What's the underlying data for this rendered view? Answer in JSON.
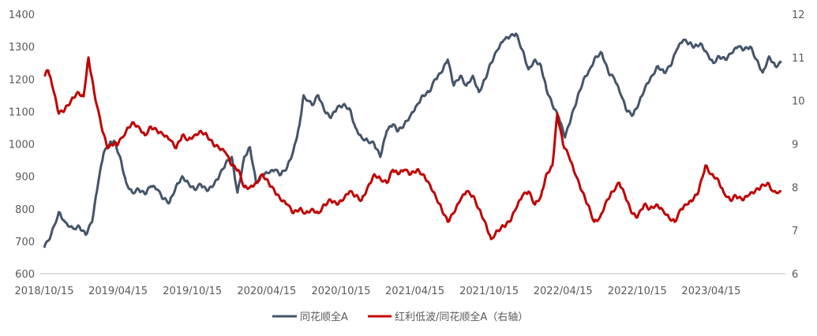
{
  "chart_data": {
    "type": "line",
    "x_labels": [
      "2018/10/15",
      "2019/04/15",
      "2019/10/15",
      "2020/04/15",
      "2020/10/15",
      "2021/04/15",
      "2021/10/15",
      "2022/04/15",
      "2022/10/15",
      "2023/04/15"
    ],
    "y_left": {
      "min": 600,
      "max": 1400,
      "ticks": [
        "600",
        "700",
        "800",
        "900",
        "1000",
        "1100",
        "1200",
        "1300",
        "1400"
      ]
    },
    "y_right": {
      "min": 6,
      "max": 12,
      "ticks": [
        "6",
        "7",
        "8",
        "9",
        "10",
        "11",
        "12"
      ]
    },
    "grid": false,
    "legend_position": "bottom",
    "series": [
      {
        "name": "同花顺全A",
        "axis": "left",
        "color": "#44546a",
        "points": [
          [
            "2018-10-15",
            680
          ],
          [
            "2018-11-01",
            720
          ],
          [
            "2018-11-20",
            790
          ],
          [
            "2018-12-05",
            760
          ],
          [
            "2018-12-25",
            740
          ],
          [
            "2019-01-10",
            745
          ],
          [
            "2019-01-25",
            720
          ],
          [
            "2019-02-10",
            760
          ],
          [
            "2019-02-25",
            880
          ],
          [
            "2019-03-10",
            970
          ],
          [
            "2019-03-25",
            1000
          ],
          [
            "2019-04-05",
            1010
          ],
          [
            "2019-04-20",
            960
          ],
          [
            "2019-05-05",
            880
          ],
          [
            "2019-05-20",
            850
          ],
          [
            "2019-06-05",
            860
          ],
          [
            "2019-06-20",
            845
          ],
          [
            "2019-07-05",
            870
          ],
          [
            "2019-07-20",
            860
          ],
          [
            "2019-08-05",
            830
          ],
          [
            "2019-08-20",
            820
          ],
          [
            "2019-09-05",
            870
          ],
          [
            "2019-09-20",
            900
          ],
          [
            "2019-10-05",
            880
          ],
          [
            "2019-10-20",
            860
          ],
          [
            "2019-11-05",
            875
          ],
          [
            "2019-11-20",
            855
          ],
          [
            "2019-12-05",
            870
          ],
          [
            "2019-12-20",
            900
          ],
          [
            "2020-01-05",
            940
          ],
          [
            "2020-01-20",
            960
          ],
          [
            "2020-02-03",
            850
          ],
          [
            "2020-02-20",
            960
          ],
          [
            "2020-03-05",
            990
          ],
          [
            "2020-03-20",
            880
          ],
          [
            "2020-04-05",
            905
          ],
          [
            "2020-04-20",
            910
          ],
          [
            "2020-05-05",
            920
          ],
          [
            "2020-05-20",
            905
          ],
          [
            "2020-06-05",
            930
          ],
          [
            "2020-06-20",
            980
          ],
          [
            "2020-07-05",
            1060
          ],
          [
            "2020-07-15",
            1150
          ],
          [
            "2020-08-05",
            1120
          ],
          [
            "2020-08-20",
            1150
          ],
          [
            "2020-09-05",
            1100
          ],
          [
            "2020-09-20",
            1080
          ],
          [
            "2020-10-05",
            1110
          ],
          [
            "2020-10-20",
            1120
          ],
          [
            "2020-11-05",
            1110
          ],
          [
            "2020-11-20",
            1050
          ],
          [
            "2020-12-05",
            1020
          ],
          [
            "2020-12-20",
            1010
          ],
          [
            "2021-01-05",
            1000
          ],
          [
            "2021-01-20",
            960
          ],
          [
            "2021-02-05",
            1040
          ],
          [
            "2021-02-20",
            1060
          ],
          [
            "2021-03-05",
            1040
          ],
          [
            "2021-03-20",
            1060
          ],
          [
            "2021-04-05",
            1090
          ],
          [
            "2021-04-20",
            1120
          ],
          [
            "2021-05-05",
            1150
          ],
          [
            "2021-05-20",
            1160
          ],
          [
            "2021-06-05",
            1200
          ],
          [
            "2021-06-20",
            1220
          ],
          [
            "2021-07-05",
            1260
          ],
          [
            "2021-07-20",
            1180
          ],
          [
            "2021-08-05",
            1210
          ],
          [
            "2021-08-20",
            1180
          ],
          [
            "2021-09-05",
            1210
          ],
          [
            "2021-09-20",
            1160
          ],
          [
            "2021-10-05",
            1200
          ],
          [
            "2021-10-20",
            1250
          ],
          [
            "2021-11-05",
            1290
          ],
          [
            "2021-11-20",
            1320
          ],
          [
            "2021-12-05",
            1330
          ],
          [
            "2021-12-20",
            1340
          ],
          [
            "2022-01-05",
            1290
          ],
          [
            "2022-01-20",
            1230
          ],
          [
            "2022-02-05",
            1260
          ],
          [
            "2022-02-20",
            1240
          ],
          [
            "2022-03-05",
            1170
          ],
          [
            "2022-03-20",
            1120
          ],
          [
            "2022-04-05",
            1080
          ],
          [
            "2022-04-20",
            1020
          ],
          [
            "2022-05-05",
            1080
          ],
          [
            "2022-05-20",
            1140
          ],
          [
            "2022-06-05",
            1200
          ],
          [
            "2022-06-20",
            1230
          ],
          [
            "2022-07-05",
            1270
          ],
          [
            "2022-07-20",
            1280
          ],
          [
            "2022-08-05",
            1220
          ],
          [
            "2022-08-20",
            1200
          ],
          [
            "2022-09-05",
            1150
          ],
          [
            "2022-09-20",
            1100
          ],
          [
            "2022-10-05",
            1090
          ],
          [
            "2022-10-20",
            1130
          ],
          [
            "2022-11-05",
            1180
          ],
          [
            "2022-11-20",
            1210
          ],
          [
            "2022-12-05",
            1240
          ],
          [
            "2022-12-20",
            1220
          ],
          [
            "2023-01-05",
            1240
          ],
          [
            "2023-01-20",
            1290
          ],
          [
            "2023-02-05",
            1320
          ],
          [
            "2023-02-20",
            1310
          ],
          [
            "2023-03-05",
            1300
          ],
          [
            "2023-03-20",
            1310
          ],
          [
            "2023-04-05",
            1280
          ],
          [
            "2023-04-20",
            1250
          ],
          [
            "2023-05-05",
            1270
          ],
          [
            "2023-05-20",
            1260
          ],
          [
            "2023-06-05",
            1280
          ],
          [
            "2023-06-20",
            1300
          ],
          [
            "2023-07-05",
            1290
          ],
          [
            "2023-07-20",
            1300
          ],
          [
            "2023-08-05",
            1260
          ],
          [
            "2023-08-20",
            1220
          ],
          [
            "2023-09-05",
            1270
          ],
          [
            "2023-09-20",
            1240
          ],
          [
            "2023-10-05",
            1250
          ]
        ]
      },
      {
        "name": "红利低波/同花顺全A（右轴）",
        "axis": "right",
        "color": "#c00000",
        "points": [
          [
            "2018-10-15",
            10.6
          ],
          [
            "2018-10-25",
            10.7
          ],
          [
            "2018-11-05",
            10.3
          ],
          [
            "2018-11-20",
            9.7
          ],
          [
            "2018-12-05",
            9.8
          ],
          [
            "2018-12-20",
            10.0
          ],
          [
            "2019-01-05",
            10.2
          ],
          [
            "2019-01-20",
            10.1
          ],
          [
            "2019-02-01",
            11.0
          ],
          [
            "2019-02-15",
            10.2
          ],
          [
            "2019-03-05",
            9.4
          ],
          [
            "2019-03-20",
            8.9
          ],
          [
            "2019-04-05",
            9.0
          ],
          [
            "2019-04-15",
            9.0
          ],
          [
            "2019-05-05",
            9.3
          ],
          [
            "2019-05-20",
            9.5
          ],
          [
            "2019-06-05",
            9.4
          ],
          [
            "2019-06-20",
            9.2
          ],
          [
            "2019-07-05",
            9.4
          ],
          [
            "2019-07-20",
            9.3
          ],
          [
            "2019-08-05",
            9.2
          ],
          [
            "2019-08-20",
            9.1
          ],
          [
            "2019-09-05",
            8.9
          ],
          [
            "2019-09-20",
            9.2
          ],
          [
            "2019-10-05",
            9.1
          ],
          [
            "2019-10-20",
            9.2
          ],
          [
            "2019-11-05",
            9.3
          ],
          [
            "2019-11-20",
            9.2
          ],
          [
            "2019-12-05",
            9.0
          ],
          [
            "2019-12-20",
            8.9
          ],
          [
            "2020-01-05",
            8.8
          ],
          [
            "2020-01-20",
            8.5
          ],
          [
            "2020-02-05",
            8.4
          ],
          [
            "2020-02-20",
            8.0
          ],
          [
            "2020-03-05",
            8.0
          ],
          [
            "2020-03-20",
            8.1
          ],
          [
            "2020-04-05",
            8.3
          ],
          [
            "2020-04-20",
            8.1
          ],
          [
            "2020-05-05",
            7.9
          ],
          [
            "2020-05-20",
            7.7
          ],
          [
            "2020-06-05",
            7.6
          ],
          [
            "2020-06-20",
            7.4
          ],
          [
            "2020-07-05",
            7.5
          ],
          [
            "2020-07-20",
            7.4
          ],
          [
            "2020-08-05",
            7.5
          ],
          [
            "2020-08-20",
            7.4
          ],
          [
            "2020-09-05",
            7.6
          ],
          [
            "2020-09-20",
            7.7
          ],
          [
            "2020-10-05",
            7.6
          ],
          [
            "2020-10-20",
            7.7
          ],
          [
            "2020-11-05",
            7.9
          ],
          [
            "2020-11-20",
            7.8
          ],
          [
            "2020-12-05",
            7.7
          ],
          [
            "2020-12-20",
            8.0
          ],
          [
            "2021-01-05",
            8.3
          ],
          [
            "2021-01-20",
            8.2
          ],
          [
            "2021-02-05",
            8.1
          ],
          [
            "2021-02-20",
            8.4
          ],
          [
            "2021-03-05",
            8.3
          ],
          [
            "2021-03-20",
            8.4
          ],
          [
            "2021-04-05",
            8.3
          ],
          [
            "2021-04-20",
            8.4
          ],
          [
            "2021-05-05",
            8.3
          ],
          [
            "2021-05-20",
            8.1
          ],
          [
            "2021-06-05",
            7.8
          ],
          [
            "2021-06-20",
            7.5
          ],
          [
            "2021-07-05",
            7.2
          ],
          [
            "2021-07-20",
            7.4
          ],
          [
            "2021-08-05",
            7.7
          ],
          [
            "2021-08-20",
            7.9
          ],
          [
            "2021-09-05",
            7.8
          ],
          [
            "2021-09-20",
            7.5
          ],
          [
            "2021-10-05",
            7.2
          ],
          [
            "2021-10-20",
            6.8
          ],
          [
            "2021-11-05",
            7.0
          ],
          [
            "2021-11-20",
            7.1
          ],
          [
            "2021-12-05",
            7.2
          ],
          [
            "2021-12-20",
            7.5
          ],
          [
            "2022-01-05",
            7.8
          ],
          [
            "2022-01-20",
            7.9
          ],
          [
            "2022-02-05",
            7.6
          ],
          [
            "2022-02-20",
            7.8
          ],
          [
            "2022-03-05",
            8.3
          ],
          [
            "2022-03-20",
            8.5
          ],
          [
            "2022-04-01",
            9.7
          ],
          [
            "2022-04-15",
            9.0
          ],
          [
            "2022-04-30",
            8.7
          ],
          [
            "2022-05-15",
            8.3
          ],
          [
            "2022-06-01",
            7.9
          ],
          [
            "2022-06-15",
            7.6
          ],
          [
            "2022-07-01",
            7.2
          ],
          [
            "2022-07-15",
            7.3
          ],
          [
            "2022-08-01",
            7.7
          ],
          [
            "2022-08-15",
            7.9
          ],
          [
            "2022-09-01",
            8.1
          ],
          [
            "2022-09-15",
            7.8
          ],
          [
            "2022-10-01",
            7.4
          ],
          [
            "2022-10-15",
            7.3
          ],
          [
            "2022-11-01",
            7.6
          ],
          [
            "2022-11-15",
            7.5
          ],
          [
            "2022-12-01",
            7.6
          ],
          [
            "2022-12-15",
            7.5
          ],
          [
            "2023-01-01",
            7.3
          ],
          [
            "2023-01-15",
            7.2
          ],
          [
            "2023-02-01",
            7.5
          ],
          [
            "2023-02-15",
            7.6
          ],
          [
            "2023-03-01",
            7.7
          ],
          [
            "2023-03-15",
            7.9
          ],
          [
            "2023-04-01",
            8.5
          ],
          [
            "2023-04-15",
            8.3
          ],
          [
            "2023-05-01",
            8.2
          ],
          [
            "2023-05-15",
            7.9
          ],
          [
            "2023-06-01",
            7.7
          ],
          [
            "2023-06-15",
            7.8
          ],
          [
            "2023-07-01",
            7.7
          ],
          [
            "2023-07-15",
            7.8
          ],
          [
            "2023-08-01",
            7.9
          ],
          [
            "2023-08-15",
            8.0
          ],
          [
            "2023-09-01",
            8.1
          ],
          [
            "2023-09-15",
            7.9
          ],
          [
            "2023-10-05",
            7.9
          ]
        ]
      }
    ]
  }
}
